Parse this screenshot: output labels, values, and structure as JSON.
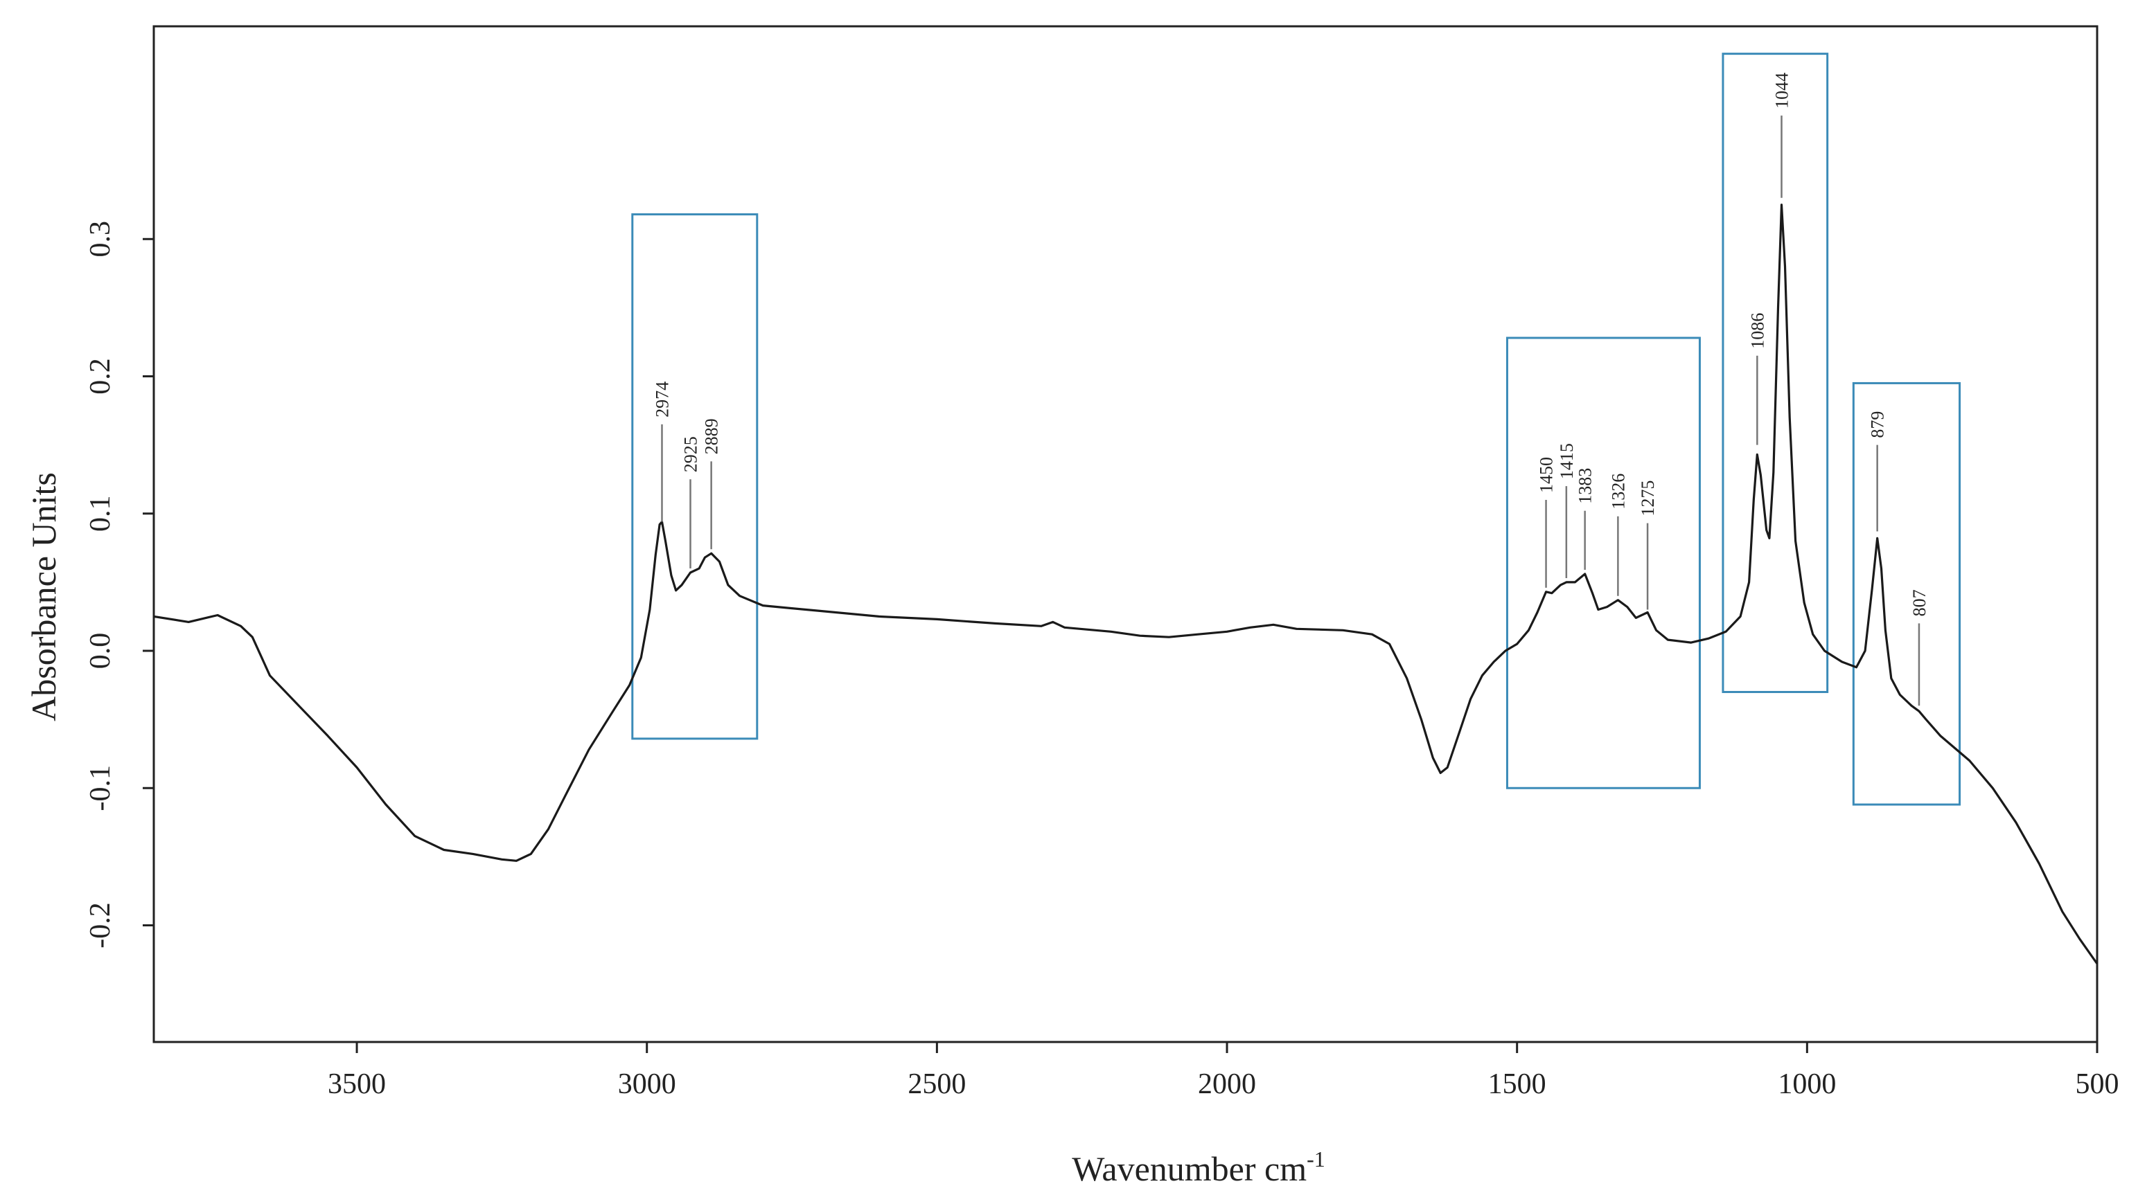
{
  "chart_data": {
    "type": "line",
    "title": "",
    "xlabel": "Wavenumber cm",
    "xlabel_sup": "-1",
    "ylabel": "Absorbance Units",
    "xlim": [
      3850,
      500
    ],
    "ylim": [
      -0.285,
      0.455
    ],
    "x_reversed": true,
    "grid": false,
    "xticks": [
      3500,
      3000,
      2500,
      2000,
      1500,
      1000,
      500
    ],
    "yticks": [
      -0.2,
      -0.1,
      0.0,
      0.1,
      0.2,
      0.3
    ],
    "ytick_labels": [
      "-0.2",
      "-0.1",
      "0.0",
      "0.1",
      "0.2",
      "0.3"
    ],
    "line_color": "#1a1a1a",
    "box_color": "#3b8bb8",
    "series": [
      {
        "points": [
          [
            3850,
            0.025
          ],
          [
            3790,
            0.021
          ],
          [
            3760,
            0.024
          ],
          [
            3740,
            0.026
          ],
          [
            3700,
            0.018
          ],
          [
            3680,
            0.01
          ],
          [
            3650,
            -0.018
          ],
          [
            3600,
            -0.04
          ],
          [
            3550,
            -0.062
          ],
          [
            3500,
            -0.085
          ],
          [
            3450,
            -0.112
          ],
          [
            3400,
            -0.135
          ],
          [
            3350,
            -0.145
          ],
          [
            3300,
            -0.148
          ],
          [
            3250,
            -0.152
          ],
          [
            3225,
            -0.153
          ],
          [
            3200,
            -0.148
          ],
          [
            3170,
            -0.13
          ],
          [
            3140,
            -0.105
          ],
          [
            3100,
            -0.072
          ],
          [
            3060,
            -0.045
          ],
          [
            3030,
            -0.025
          ],
          [
            3010,
            -0.005
          ],
          [
            2995,
            0.03
          ],
          [
            2985,
            0.07
          ],
          [
            2978,
            0.092
          ],
          [
            2974,
            0.094
          ],
          [
            2968,
            0.08
          ],
          [
            2958,
            0.055
          ],
          [
            2950,
            0.044
          ],
          [
            2940,
            0.048
          ],
          [
            2925,
            0.057
          ],
          [
            2910,
            0.06
          ],
          [
            2900,
            0.068
          ],
          [
            2889,
            0.071
          ],
          [
            2875,
            0.065
          ],
          [
            2860,
            0.048
          ],
          [
            2840,
            0.04
          ],
          [
            2800,
            0.033
          ],
          [
            2750,
            0.031
          ],
          [
            2700,
            0.029
          ],
          [
            2600,
            0.025
          ],
          [
            2500,
            0.023
          ],
          [
            2400,
            0.02
          ],
          [
            2320,
            0.018
          ],
          [
            2300,
            0.021
          ],
          [
            2280,
            0.017
          ],
          [
            2200,
            0.014
          ],
          [
            2150,
            0.011
          ],
          [
            2100,
            0.01
          ],
          [
            2050,
            0.012
          ],
          [
            2000,
            0.014
          ],
          [
            1960,
            0.017
          ],
          [
            1920,
            0.019
          ],
          [
            1880,
            0.016
          ],
          [
            1800,
            0.015
          ],
          [
            1750,
            0.012
          ],
          [
            1720,
            0.005
          ],
          [
            1690,
            -0.02
          ],
          [
            1665,
            -0.05
          ],
          [
            1645,
            -0.078
          ],
          [
            1632,
            -0.089
          ],
          [
            1620,
            -0.085
          ],
          [
            1600,
            -0.06
          ],
          [
            1580,
            -0.035
          ],
          [
            1560,
            -0.018
          ],
          [
            1540,
            -0.008
          ],
          [
            1520,
            0.0
          ],
          [
            1500,
            0.005
          ],
          [
            1480,
            0.015
          ],
          [
            1465,
            0.028
          ],
          [
            1450,
            0.043
          ],
          [
            1440,
            0.042
          ],
          [
            1425,
            0.048
          ],
          [
            1415,
            0.05
          ],
          [
            1400,
            0.05
          ],
          [
            1383,
            0.056
          ],
          [
            1370,
            0.042
          ],
          [
            1360,
            0.03
          ],
          [
            1345,
            0.032
          ],
          [
            1326,
            0.037
          ],
          [
            1310,
            0.032
          ],
          [
            1295,
            0.024
          ],
          [
            1275,
            0.028
          ],
          [
            1260,
            0.015
          ],
          [
            1240,
            0.008
          ],
          [
            1200,
            0.006
          ],
          [
            1170,
            0.009
          ],
          [
            1140,
            0.014
          ],
          [
            1115,
            0.025
          ],
          [
            1100,
            0.05
          ],
          [
            1092,
            0.11
          ],
          [
            1086,
            0.143
          ],
          [
            1080,
            0.128
          ],
          [
            1070,
            0.088
          ],
          [
            1065,
            0.082
          ],
          [
            1058,
            0.13
          ],
          [
            1050,
            0.25
          ],
          [
            1044,
            0.325
          ],
          [
            1038,
            0.28
          ],
          [
            1030,
            0.17
          ],
          [
            1020,
            0.08
          ],
          [
            1005,
            0.035
          ],
          [
            990,
            0.012
          ],
          [
            970,
            0.0
          ],
          [
            940,
            -0.008
          ],
          [
            915,
            -0.012
          ],
          [
            900,
            0.0
          ],
          [
            888,
            0.045
          ],
          [
            879,
            0.082
          ],
          [
            872,
            0.06
          ],
          [
            865,
            0.015
          ],
          [
            855,
            -0.02
          ],
          [
            840,
            -0.032
          ],
          [
            820,
            -0.04
          ],
          [
            807,
            -0.044
          ],
          [
            795,
            -0.05
          ],
          [
            770,
            -0.062
          ],
          [
            720,
            -0.08
          ],
          [
            680,
            -0.1
          ],
          [
            640,
            -0.125
          ],
          [
            600,
            -0.155
          ],
          [
            560,
            -0.19
          ],
          [
            530,
            -0.21
          ],
          [
            500,
            -0.228
          ]
        ]
      }
    ],
    "peak_labels": [
      {
        "text": "2974",
        "x": 2974,
        "y": 0.094,
        "y_text": 0.165
      },
      {
        "text": "2925",
        "x": 2925,
        "y": 0.06,
        "y_text": 0.125
      },
      {
        "text": "2889",
        "x": 2889,
        "y": 0.074,
        "y_text": 0.138
      },
      {
        "text": "1450",
        "x": 1450,
        "y": 0.046,
        "y_text": 0.11
      },
      {
        "text": "1415",
        "x": 1415,
        "y": 0.053,
        "y_text": 0.12
      },
      {
        "text": "1383",
        "x": 1383,
        "y": 0.059,
        "y_text": 0.102
      },
      {
        "text": "1326",
        "x": 1326,
        "y": 0.04,
        "y_text": 0.098
      },
      {
        "text": "1275",
        "x": 1275,
        "y": 0.03,
        "y_text": 0.093
      },
      {
        "text": "1086",
        "x": 1086,
        "y": 0.15,
        "y_text": 0.215
      },
      {
        "text": "1044",
        "x": 1044,
        "y": 0.33,
        "y_text": 0.39
      },
      {
        "text": "879",
        "x": 879,
        "y": 0.087,
        "y_text": 0.15
      },
      {
        "text": "807",
        "x": 807,
        "y": -0.04,
        "y_text": 0.02
      }
    ],
    "highlight_regions": [
      {
        "x_from": 3025,
        "x_to": 2810,
        "y_from": -0.064,
        "y_to": 0.318
      },
      {
        "x_from": 1517,
        "x_to": 1185,
        "y_from": -0.1,
        "y_to": 0.228
      },
      {
        "x_from": 1145,
        "x_to": 965,
        "y_from": -0.03,
        "y_to": 0.435
      },
      {
        "x_from": 920,
        "x_to": 737,
        "y_from": -0.112,
        "y_to": 0.195
      }
    ]
  }
}
